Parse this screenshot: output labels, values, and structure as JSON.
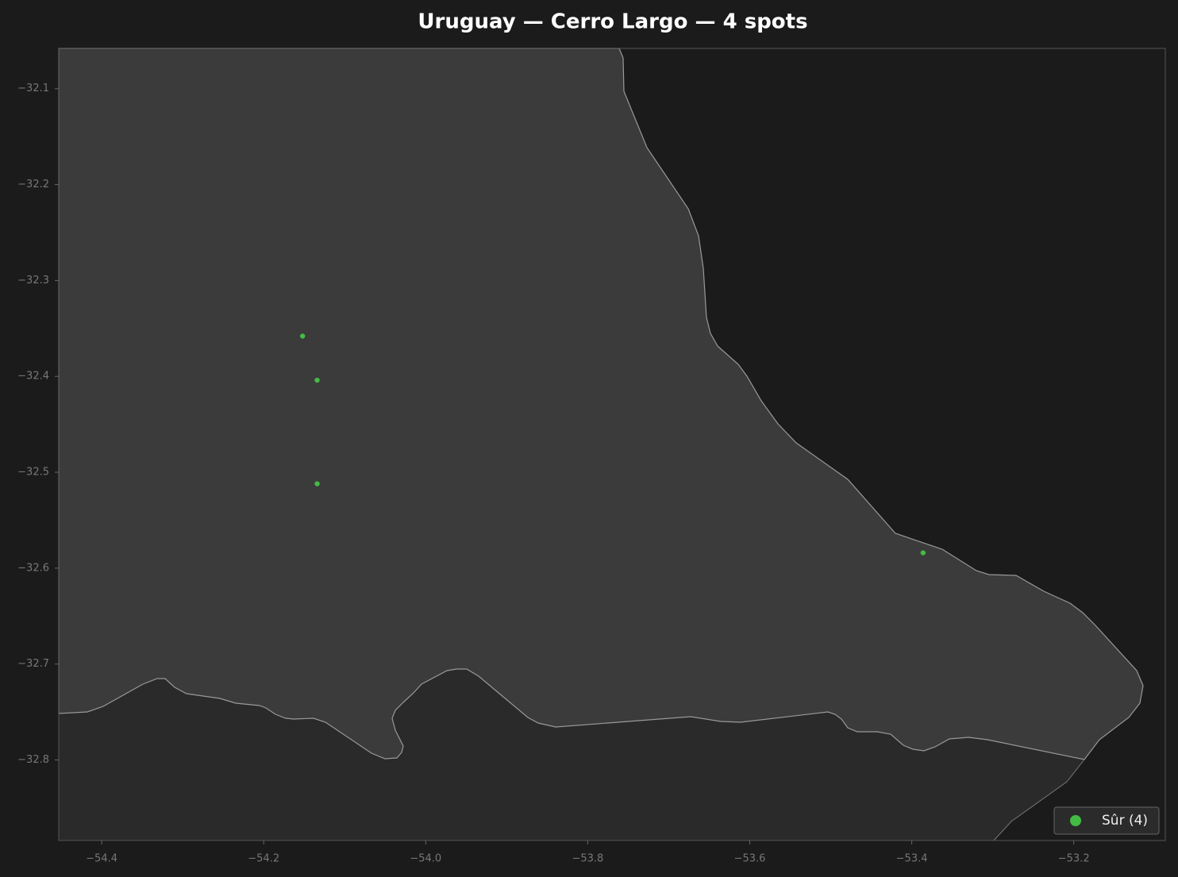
{
  "chart_data": {
    "type": "scatter",
    "title": "Uruguay — Cerro Largo — 4 spots",
    "series": [
      {
        "name": "Sûr (4)",
        "color": "#44bb44",
        "x": [
          -54.152,
          -54.134,
          -54.134,
          -53.386
        ],
        "values": [
          -32.358,
          -32.404,
          -32.512,
          -32.584
        ]
      }
    ],
    "xlim": [
      -54.453,
      -53.087
    ],
    "ylim": [
      -32.884,
      -32.058
    ],
    "xticks": [
      {
        "value": -54.4,
        "label": "−54.4"
      },
      {
        "value": -54.2,
        "label": "−54.2"
      },
      {
        "value": -54.0,
        "label": "−54.0"
      },
      {
        "value": -53.8,
        "label": "−53.8"
      },
      {
        "value": -53.6,
        "label": "−53.6"
      },
      {
        "value": -53.4,
        "label": "−53.4"
      },
      {
        "value": -53.2,
        "label": "−53.2"
      }
    ],
    "yticks": [
      {
        "value": -32.1,
        "label": "−32.1"
      },
      {
        "value": -32.2,
        "label": "−32.2"
      },
      {
        "value": -32.3,
        "label": "−32.3"
      },
      {
        "value": -32.4,
        "label": "−32.4"
      },
      {
        "value": -32.5,
        "label": "−32.5"
      },
      {
        "value": -32.6,
        "label": "−32.6"
      },
      {
        "value": -32.7,
        "label": "−32.7"
      },
      {
        "value": -32.8,
        "label": "−32.8"
      }
    ],
    "grid": false,
    "legend": "lower right"
  }
}
